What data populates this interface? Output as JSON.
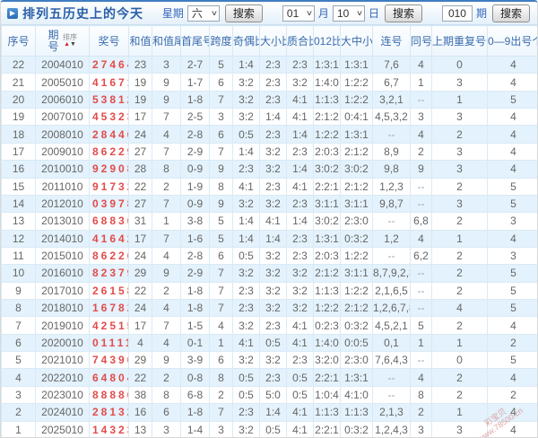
{
  "header": {
    "title": "排列五历史上的今天",
    "week_label": "星期",
    "week_value": "六",
    "month_value": "01",
    "month_label": "月",
    "day_value": "10",
    "day_label": "日",
    "issue_value": "010",
    "issue_label": "期",
    "search_label": "搜索"
  },
  "table": {
    "sort_label": "排序",
    "sort_arrow_up": "▲",
    "sort_arrow_down": "▼",
    "columns": [
      "序号",
      "期号",
      "奖号",
      "和值",
      "和值尾",
      "首尾号",
      "跨度",
      "奇偶比",
      "大小比",
      "质合比",
      "012比",
      "大中小比",
      "连号",
      "同号",
      "上期重复号个数",
      "0—9出号个数"
    ],
    "column_keys": [
      "seq",
      "issue",
      "prize",
      "sum",
      "sum-tail",
      "first-last",
      "span",
      "odd-even-ratio",
      "big-small-ratio",
      "prime-composite-ratio",
      "012-ratio",
      "big-mid-small-ratio",
      "consecutive",
      "same",
      "prev-repeat-count",
      "digit-count"
    ],
    "rows": [
      [
        "22",
        "2004010",
        "27464",
        "23",
        "3",
        "2-7",
        "5",
        "1:4",
        "2:3",
        "2:3",
        "1:3:1",
        "1:3:1",
        "7,6",
        "4",
        "0",
        "4"
      ],
      [
        "21",
        "2005010",
        "41671",
        "19",
        "9",
        "1-7",
        "6",
        "3:2",
        "2:3",
        "3:2",
        "1:4:0",
        "1:2:2",
        "6,7",
        "1",
        "3",
        "4"
      ],
      [
        "20",
        "2006010",
        "53812",
        "19",
        "9",
        "1-8",
        "7",
        "3:2",
        "2:3",
        "4:1",
        "1:1:3",
        "1:2:2",
        "3,2,1",
        "--",
        "1",
        "5"
      ],
      [
        "19",
        "2007010",
        "45323",
        "17",
        "7",
        "2-5",
        "3",
        "3:2",
        "1:4",
        "4:1",
        "2:1:2",
        "0:4:1",
        "4,5,3,2",
        "3",
        "3",
        "4"
      ],
      [
        "18",
        "2008010",
        "28446",
        "24",
        "4",
        "2-8",
        "6",
        "0:5",
        "2:3",
        "1:4",
        "1:2:2",
        "1:3:1",
        "--",
        "4",
        "2",
        "4"
      ],
      [
        "17",
        "2009010",
        "86229",
        "27",
        "7",
        "2-9",
        "7",
        "1:4",
        "3:2",
        "2:3",
        "2:0:3",
        "2:1:2",
        "8,9",
        "2",
        "3",
        "4"
      ],
      [
        "16",
        "2010010",
        "92908",
        "28",
        "8",
        "0-9",
        "9",
        "2:3",
        "3:2",
        "1:4",
        "3:0:2",
        "3:0:2",
        "9,8",
        "9",
        "3",
        "4"
      ],
      [
        "15",
        "2011010",
        "91732",
        "22",
        "2",
        "1-9",
        "8",
        "4:1",
        "2:3",
        "4:1",
        "2:2:1",
        "2:1:2",
        "1,2,3",
        "--",
        "2",
        "5"
      ],
      [
        "14",
        "2012010",
        "03978",
        "27",
        "7",
        "0-9",
        "9",
        "3:2",
        "3:2",
        "2:3",
        "3:1:1",
        "3:1:1",
        "9,8,7",
        "--",
        "3",
        "5"
      ],
      [
        "13",
        "2013010",
        "68836",
        "31",
        "1",
        "3-8",
        "5",
        "1:4",
        "4:1",
        "1:4",
        "3:0:2",
        "2:3:0",
        "--",
        "6,8",
        "2",
        "3"
      ],
      [
        "12",
        "2014010",
        "41642",
        "17",
        "7",
        "1-6",
        "5",
        "1:4",
        "1:4",
        "2:3",
        "1:3:1",
        "0:3:2",
        "1,2",
        "4",
        "1",
        "4"
      ],
      [
        "11",
        "2015010",
        "86226",
        "24",
        "4",
        "2-8",
        "6",
        "0:5",
        "3:2",
        "2:3",
        "2:0:3",
        "1:2:2",
        "--",
        "6,2",
        "2",
        "3"
      ],
      [
        "10",
        "2016010",
        "82379",
        "29",
        "9",
        "2-9",
        "7",
        "3:2",
        "3:2",
        "3:2",
        "2:1:2",
        "3:1:1",
        "8,7,9,2,3",
        "--",
        "2",
        "5"
      ],
      [
        "9",
        "2017010",
        "26158",
        "22",
        "2",
        "1-8",
        "7",
        "2:3",
        "3:2",
        "3:2",
        "1:1:3",
        "1:2:2",
        "2,1,6,5",
        "--",
        "2",
        "5"
      ],
      [
        "8",
        "2018010",
        "16782",
        "24",
        "4",
        "1-8",
        "7",
        "2:3",
        "3:2",
        "3:2",
        "1:2:2",
        "2:1:2",
        "1,2,6,7,8",
        "--",
        "4",
        "5"
      ],
      [
        "7",
        "2019010",
        "42515",
        "17",
        "7",
        "1-5",
        "4",
        "3:2",
        "2:3",
        "4:1",
        "0:2:3",
        "0:3:2",
        "4,5,2,1",
        "5",
        "2",
        "4"
      ],
      [
        "6",
        "2020010",
        "01111",
        "4",
        "4",
        "0-1",
        "1",
        "4:1",
        "0:5",
        "4:1",
        "1:4:0",
        "0:0:5",
        "0,1",
        "1",
        "1",
        "2"
      ],
      [
        "5",
        "2021010",
        "74396",
        "29",
        "9",
        "3-9",
        "6",
        "3:2",
        "3:2",
        "2:3",
        "3:2:0",
        "2:3:0",
        "7,6,4,3",
        "--",
        "0",
        "5"
      ],
      [
        "4",
        "2022010",
        "64804",
        "22",
        "2",
        "0-8",
        "8",
        "0:5",
        "2:3",
        "0:5",
        "2:2:1",
        "1:3:1",
        "--",
        "4",
        "2",
        "4"
      ],
      [
        "3",
        "2023010",
        "88886",
        "38",
        "8",
        "6-8",
        "2",
        "0:5",
        "5:0",
        "0:5",
        "1:0:4",
        "4:1:0",
        "--",
        "8",
        "2",
        "2"
      ],
      [
        "2",
        "2024010",
        "28132",
        "16",
        "6",
        "1-8",
        "7",
        "2:3",
        "1:4",
        "4:1",
        "1:1:3",
        "1:1:3",
        "2,1,3",
        "2",
        "1",
        "4"
      ],
      [
        "1",
        "2025010",
        "14323",
        "13",
        "3",
        "1-4",
        "3",
        "3:2",
        "0:5",
        "4:1",
        "2:2:1",
        "0:3:2",
        "1,2,4,3",
        "3",
        "3",
        "4"
      ]
    ]
  },
  "watermark": {
    "line1": "彩宝贝",
    "line2": "www.78500.cn"
  }
}
